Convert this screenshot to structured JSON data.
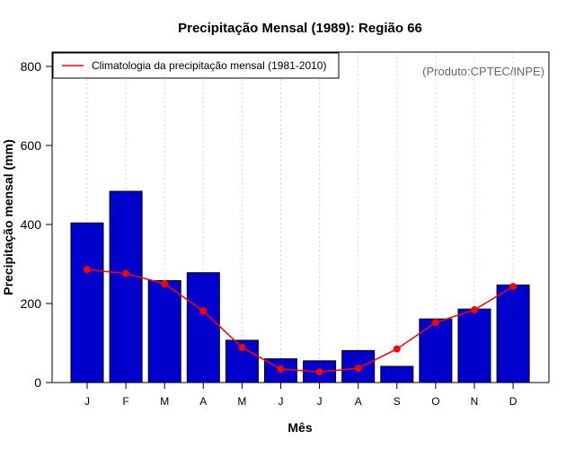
{
  "chart_data": {
    "type": "bar",
    "title": "Precipitação Mensal (1989): Região 66",
    "xlabel": "Mês",
    "ylabel": "Precipitação mensal (mm)",
    "categories": [
      "J",
      "F",
      "M",
      "A",
      "M",
      "J",
      "J",
      "A",
      "S",
      "O",
      "N",
      "D"
    ],
    "series": [
      {
        "name": "Precipitação mensal 1989",
        "type": "bar",
        "color": "#0000cc",
        "values": [
          404,
          484,
          258,
          278,
          107,
          60,
          55,
          81,
          41,
          161,
          186,
          247
        ]
      },
      {
        "name": "Climatologia da precipitação mensal (1981-2010)",
        "type": "line",
        "color": "#ff0000",
        "values": [
          286,
          276,
          250,
          181,
          89,
          34,
          27,
          36,
          85,
          152,
          184,
          243
        ]
      }
    ],
    "ylim": [
      0,
      800
    ],
    "yticks": [
      0,
      200,
      400,
      600,
      800
    ],
    "grid": "vertical dotted at categories",
    "legend": {
      "position": "top-left",
      "entries": [
        "Climatologia da precipitação mensal (1981-2010)"
      ]
    },
    "annotation": "(Produto:CPTEC/INPE)",
    "colors": {
      "bar_fill": "#0000cc",
      "line": "#ff0000",
      "grid": "#d3d3d3",
      "annotation": "#666666"
    }
  }
}
